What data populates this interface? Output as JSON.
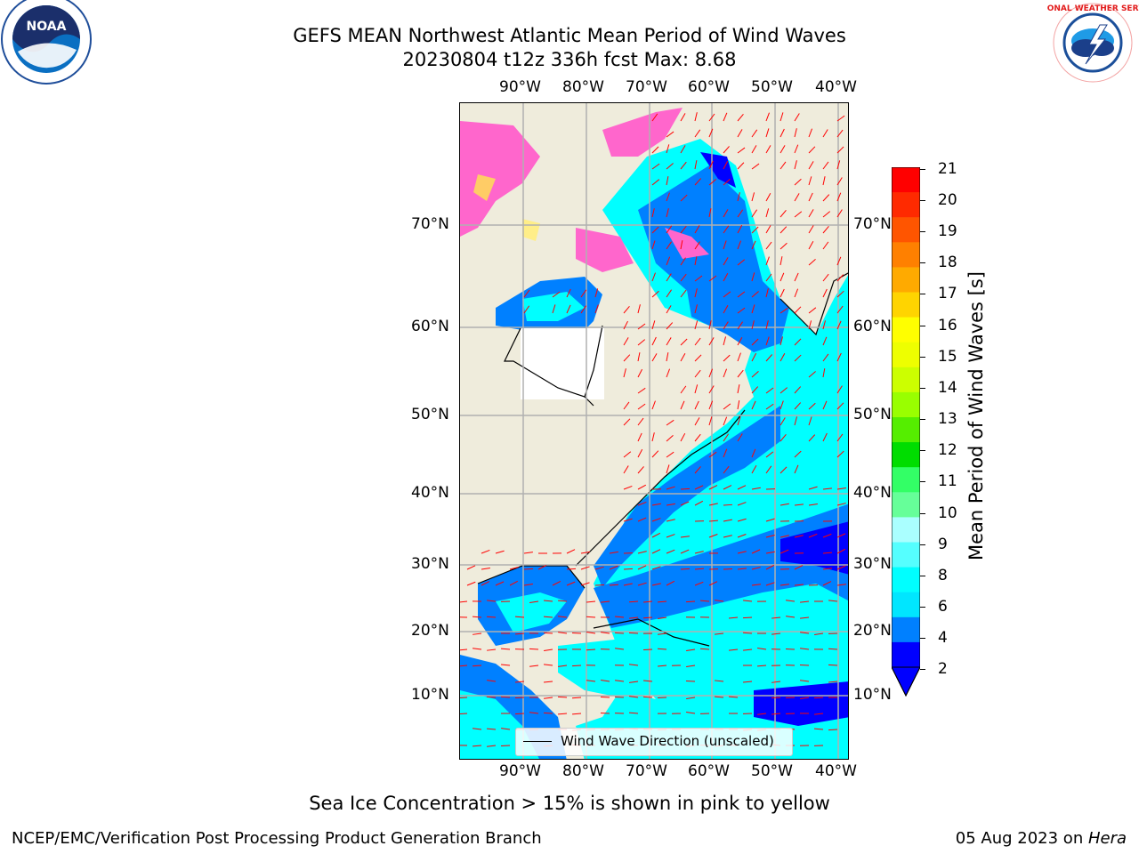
{
  "header": {
    "title_line1": "GEFS MEAN Northwest Atlantic Mean Period of Wind Waves",
    "title_line2": "20230804 t12z 336h fcst   Max: 8.68"
  },
  "logos": {
    "noaa_text": "NOAA",
    "nws_text": "NATIONAL WEATHER SERVICE"
  },
  "map": {
    "lon_labels": [
      "90°W",
      "80°W",
      "70°W",
      "60°W",
      "50°W",
      "40°W"
    ],
    "lat_labels": [
      "70°N",
      "60°N",
      "50°N",
      "40°N",
      "30°N",
      "20°N",
      "10°N"
    ],
    "legend_label": "Wind Wave Direction (unscaled)",
    "colors": {
      "land": "#efecdc",
      "ocean_light": "#00ffff",
      "ocean_mid": "#0080ff",
      "ocean_deep": "#0000ff",
      "ice": "#ff66cc",
      "arrows": "#ff0000",
      "unmasked": "#ffffff",
      "grid": "#b0b0b0"
    }
  },
  "colorbar": {
    "title": "Mean Period of Wind Waves [s]",
    "ticks": [
      "21",
      "20",
      "19",
      "18",
      "17",
      "16",
      "15",
      "14",
      "13",
      "12",
      "11",
      "10",
      "9",
      "8",
      "6",
      "4",
      "2"
    ],
    "colors": [
      "#ff0000",
      "#ff2a00",
      "#ff5500",
      "#ff8000",
      "#ffaa00",
      "#ffd400",
      "#ffff00",
      "#eeff00",
      "#ccff00",
      "#99ff00",
      "#55ee00",
      "#00dd00",
      "#33ff66",
      "#66ff99",
      "#aaffff",
      "#55ffff",
      "#00ffff",
      "#00e6ff",
      "#0080ff",
      "#0000ff"
    ]
  },
  "footer": {
    "note": "Sea Ice Concentration > 15% is shown in pink to yellow",
    "branch": "NCEP/EMC/Verification Post Processing Product Generation Branch",
    "date": "05 Aug 2023 on ",
    "machine": "Hera"
  }
}
